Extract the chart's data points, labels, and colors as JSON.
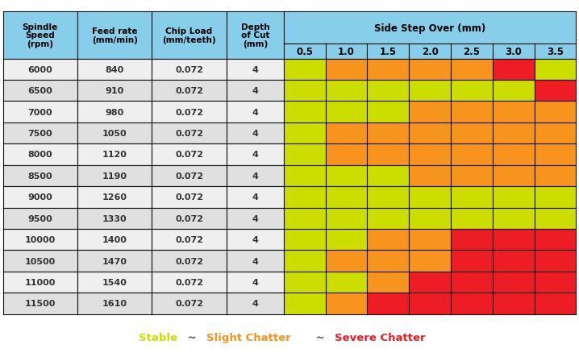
{
  "spindle_speeds": [
    "6000",
    "6500",
    "7000",
    "7500",
    "8000",
    "8500",
    "9000",
    "9500",
    "10000",
    "10500",
    "11000",
    "11500"
  ],
  "feed_rates": [
    "840",
    "910",
    "980",
    "1050",
    "1120",
    "1190",
    "1260",
    "1330",
    "1400",
    "1470",
    "1540",
    "1610"
  ],
  "chip_load": "0.072",
  "depth_of_cut": "4",
  "side_step_over_vals": [
    "0.5",
    "1.0",
    "1.5",
    "2.0",
    "2.5",
    "3.0",
    "3.5"
  ],
  "header_bg": "#87CEEB",
  "row_bg": [
    "#EFEFEF",
    "#E0E0E0"
  ],
  "border_color": "#111111",
  "color_stable": "#CCDD00",
  "color_slight": "#F7941D",
  "color_severe": "#EE1C25",
  "cell_colors": [
    [
      "S",
      "O",
      "O",
      "O",
      "O",
      "R",
      "S"
    ],
    [
      "S",
      "S",
      "S",
      "S",
      "S",
      "S",
      "R"
    ],
    [
      "S",
      "S",
      "S",
      "O",
      "O",
      "O",
      "O"
    ],
    [
      "S",
      "O",
      "O",
      "O",
      "O",
      "O",
      "O"
    ],
    [
      "S",
      "O",
      "O",
      "O",
      "O",
      "O",
      "O"
    ],
    [
      "S",
      "S",
      "S",
      "O",
      "O",
      "O",
      "O"
    ],
    [
      "S",
      "S",
      "S",
      "S",
      "S",
      "S",
      "S"
    ],
    [
      "S",
      "S",
      "S",
      "S",
      "S",
      "S",
      "S"
    ],
    [
      "S",
      "S",
      "O",
      "O",
      "R",
      "R",
      "R"
    ],
    [
      "S",
      "O",
      "O",
      "O",
      "R",
      "R",
      "R"
    ],
    [
      "S",
      "S",
      "O",
      "R",
      "R",
      "R",
      "R"
    ],
    [
      "S",
      "O",
      "R",
      "R",
      "R",
      "R",
      "R"
    ]
  ],
  "legend_items": [
    {
      "text": "Stable",
      "color": "#CCDD00"
    },
    {
      "text": " ~ ",
      "color": "#555555"
    },
    {
      "text": "Slight Chatter",
      "color": "#F7941D"
    },
    {
      "text": " ~ ",
      "color": "#555555"
    },
    {
      "text": "Severe Chatter",
      "color": "#EE1C25"
    }
  ],
  "fig_width": 7.18,
  "fig_height": 4.39,
  "dpi": 100
}
